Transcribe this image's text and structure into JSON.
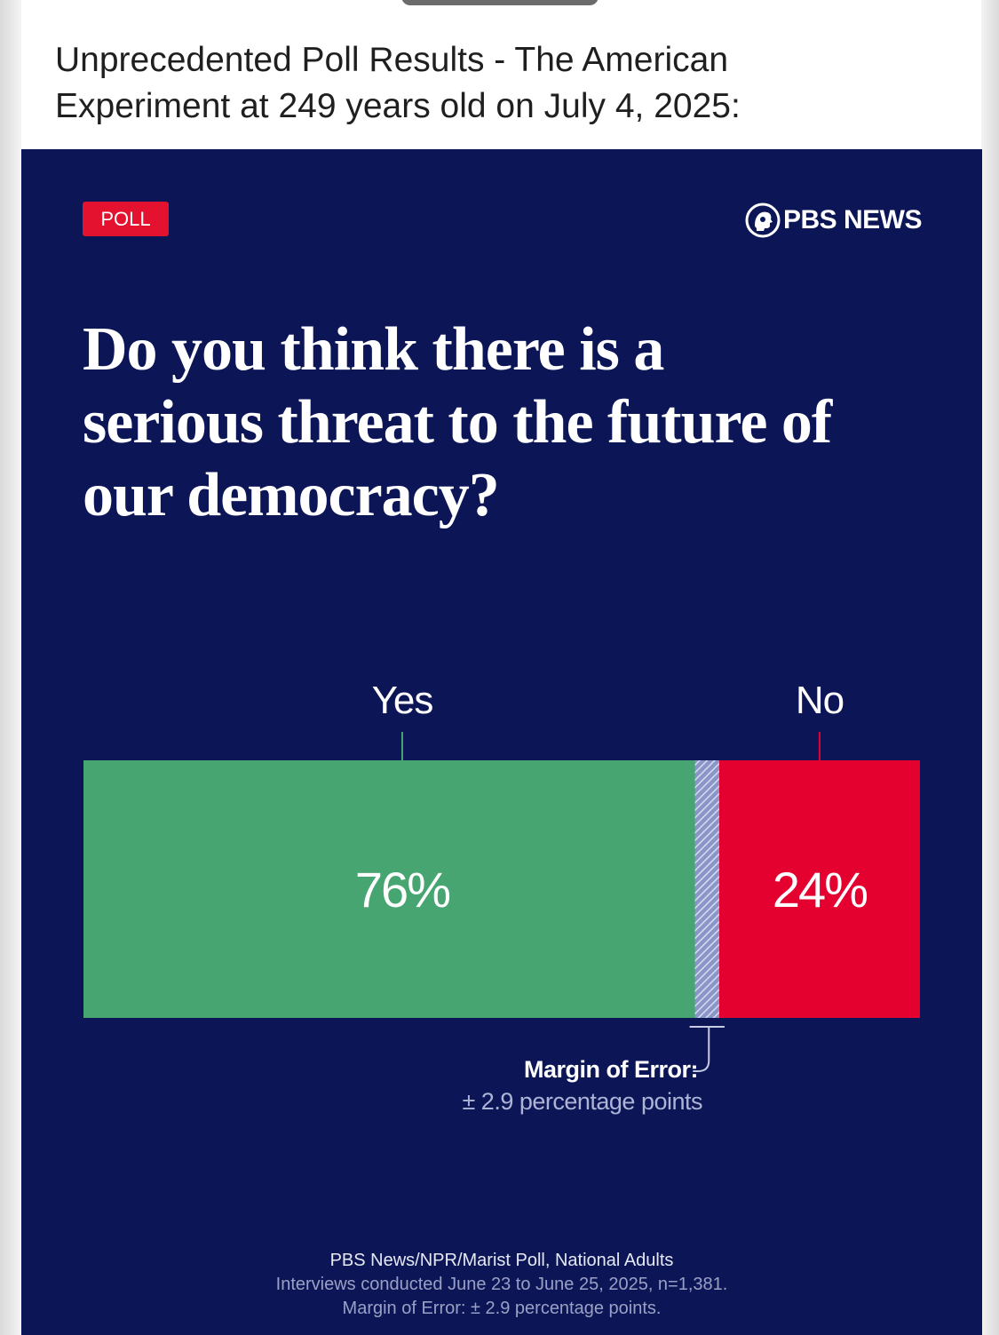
{
  "post": {
    "title_line1": "Unprecedented Poll Results - The American",
    "title_line2": "Experiment at 249 years old on July 4, 2025:"
  },
  "card": {
    "badge": "POLL",
    "brand": "PBS NEWS",
    "brand_icon": "pbs-head-logo-icon",
    "question_line1": "Do you think there is a",
    "question_line2": "serious threat to the future of",
    "question_line3": "our democracy?",
    "colors": {
      "background": "#0c1657",
      "yes": "#46a571",
      "no": "#e4002f",
      "badge": "#e4122f"
    }
  },
  "chart_data": {
    "type": "bar",
    "orientation": "horizontal-stacked",
    "categories": [
      "Yes",
      "No"
    ],
    "values": [
      76,
      24
    ],
    "value_labels": [
      "76%",
      "24%"
    ],
    "unit": "%",
    "margin_of_error": 2.9,
    "moe_label": "Margin of Error:",
    "moe_value_label": "± 2.9 percentage points"
  },
  "footer": {
    "source": "PBS News/NPR/Marist Poll, National Adults",
    "interviews": "Interviews conducted June 23 to June 25, 2025, n=1,381.",
    "moe": "Margin of Error: ± 2.9 percentage points."
  }
}
